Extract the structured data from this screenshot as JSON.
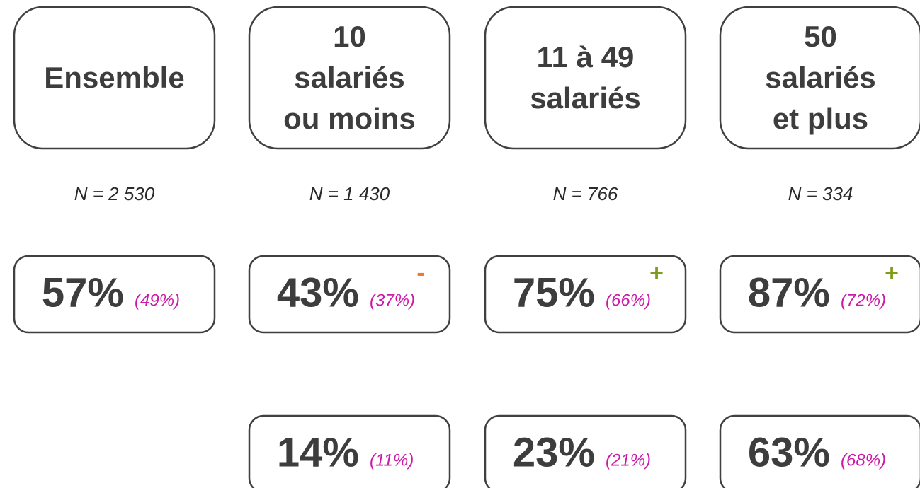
{
  "columns": [
    {
      "header": [
        "Ensemble"
      ],
      "n": "N = 2 530",
      "row1": {
        "main": "57%",
        "sub": "(49%)"
      }
    },
    {
      "header": [
        "10",
        "salariés",
        "ou moins"
      ],
      "n": "N = 1 430",
      "row1": {
        "main": "43%",
        "sub": "(37%)",
        "sign": "-"
      },
      "row2": {
        "main": "14%",
        "sub": "(11%)"
      }
    },
    {
      "header": [
        "11 à 49",
        "salariés"
      ],
      "n": "N = 766",
      "row1": {
        "main": "75%",
        "sub": "(66%)",
        "sign": "+"
      },
      "row2": {
        "main": "23%",
        "sub": "(21%)"
      }
    },
    {
      "header": [
        "50",
        "salariés",
        "et plus"
      ],
      "n": "N = 334",
      "row1": {
        "main": "87%",
        "sub": "(72%)",
        "sign": "+"
      },
      "row2": {
        "main": "63%",
        "sub": "(68%)"
      }
    }
  ]
}
